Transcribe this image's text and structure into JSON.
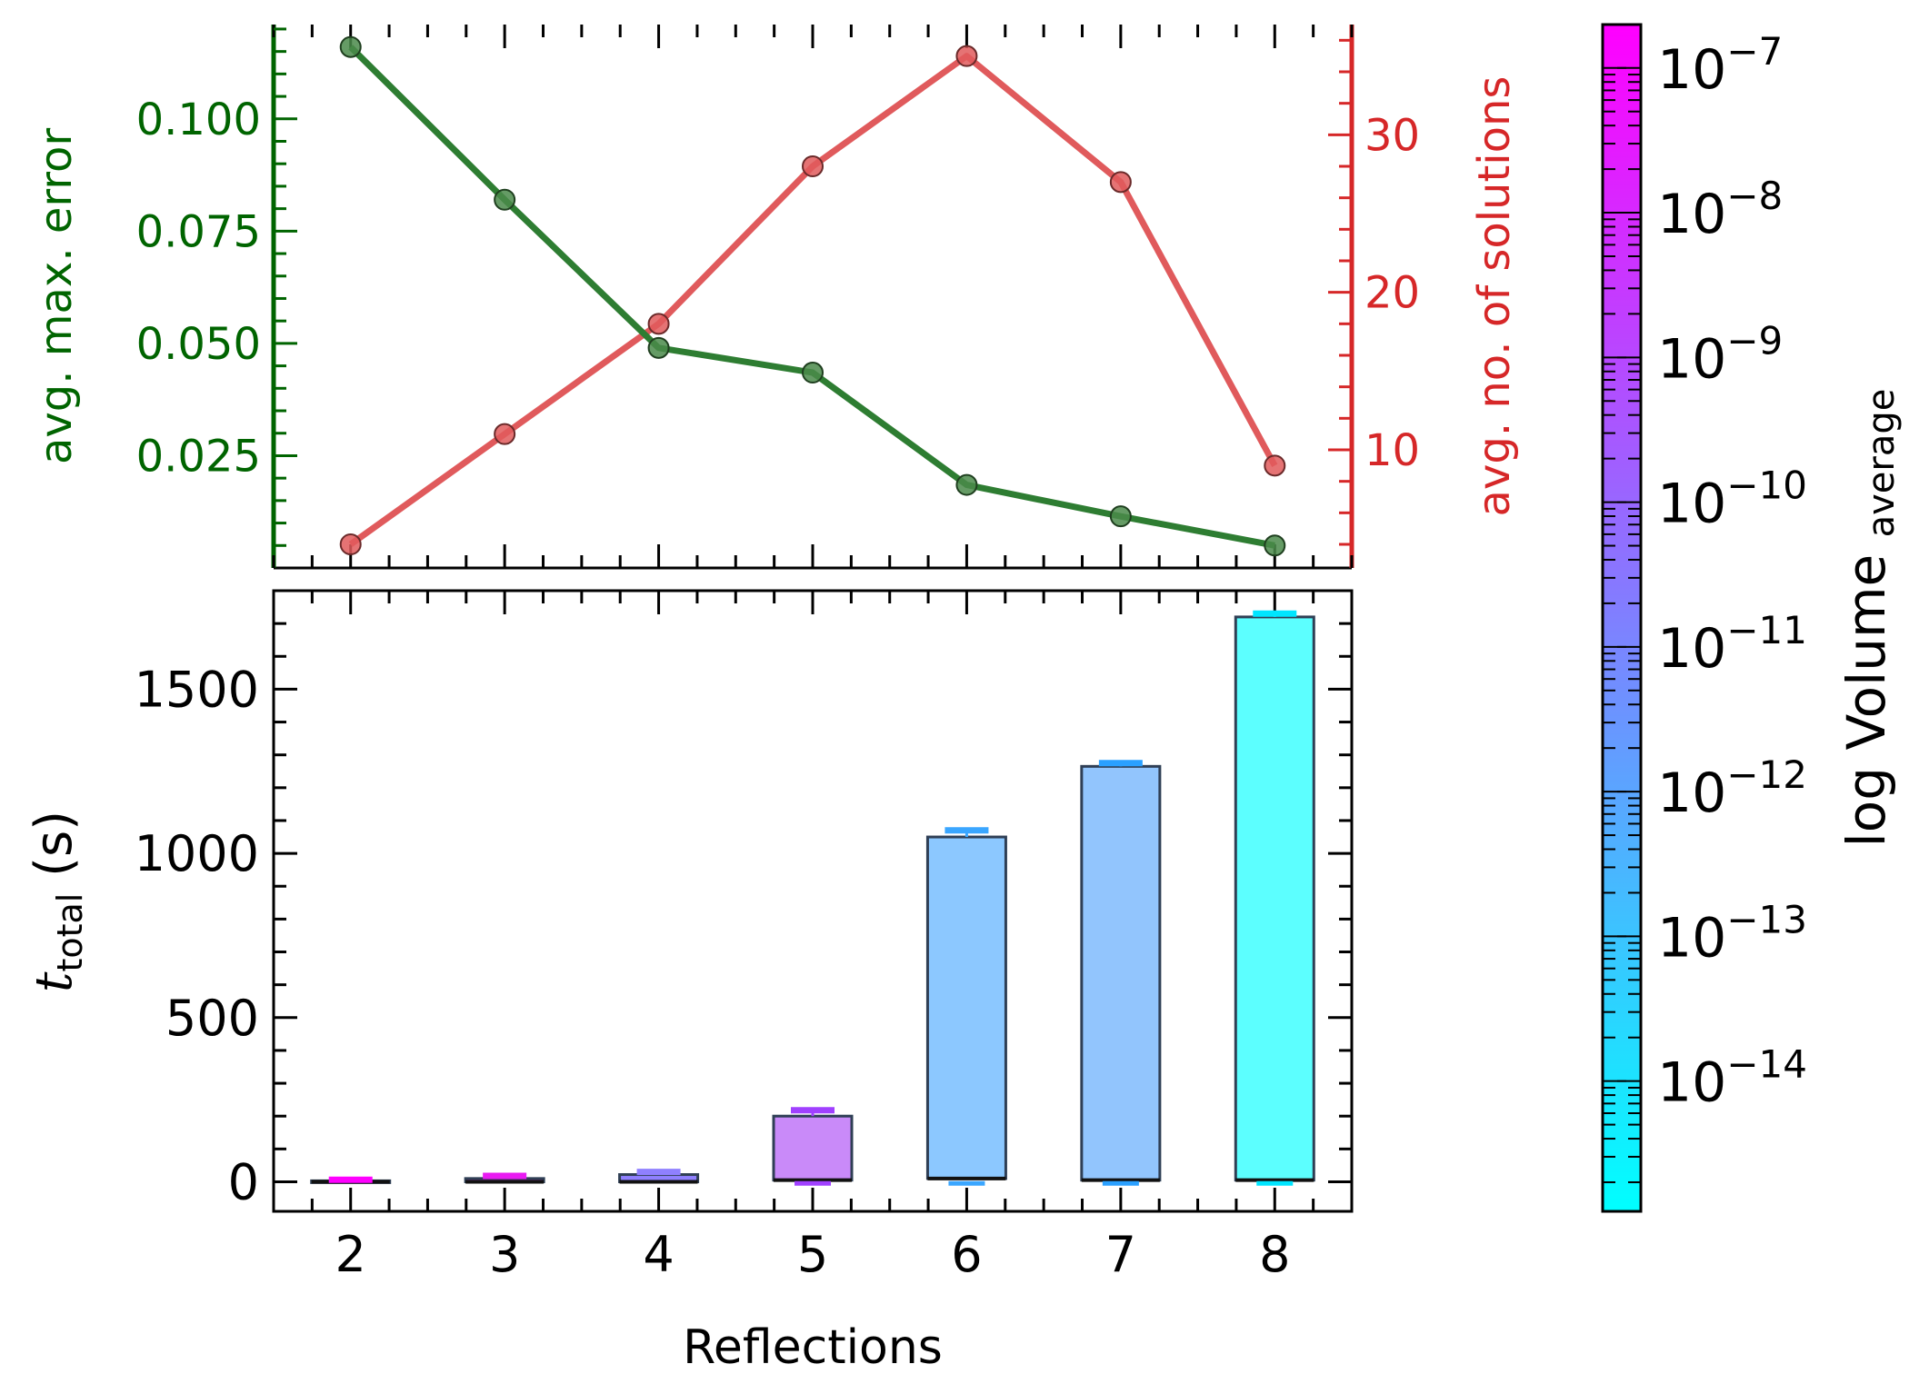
{
  "colors": {
    "error": "#006400",
    "error_line": "#2e7d32",
    "solutions": "#d62728",
    "solutions_line": "#e05a5c",
    "axis": "#000000",
    "bar_edge": "#2f3f55",
    "cmap_low": "#00ffff",
    "cmap_high": "#ff00ff"
  },
  "chart_data": [
    {
      "type": "line",
      "x": [
        2,
        3,
        4,
        5,
        6,
        7,
        8
      ],
      "xlim": [
        1.5,
        8.5
      ],
      "series": [
        {
          "name": "",
          "axis": "left",
          "values": [
            0.116,
            0.082,
            0.049,
            0.0435,
            0.0185,
            0.0115,
            0.005
          ],
          "ylabel": "avg. max. error",
          "ylim": [
            0.0,
            0.121
          ],
          "yticks": [
            0.025,
            0.05,
            0.075,
            0.1
          ],
          "ytick_labels": [
            "0.025",
            "0.050",
            "0.075",
            "0.100"
          ]
        },
        {
          "name": "",
          "axis": "right",
          "values": [
            4,
            11,
            18,
            28,
            35,
            27,
            9
          ],
          "ylabel": "avg. no. of solutions",
          "ylim": [
            2.5,
            37
          ],
          "yticks": [
            10,
            20,
            30
          ],
          "ytick_labels": [
            "10",
            "20",
            "30"
          ]
        }
      ],
      "grid": false
    },
    {
      "type": "bar",
      "categories": [
        "2",
        "3",
        "4",
        "5",
        "6",
        "7",
        "8"
      ],
      "x": [
        2,
        3,
        4,
        5,
        6,
        7,
        8
      ],
      "bar_top": [
        3,
        10,
        22,
        200,
        1050,
        1265,
        1720
      ],
      "bar_bottom": [
        0,
        0,
        0,
        5,
        10,
        5,
        5
      ],
      "err_top": [
        6,
        18,
        30,
        218,
        1070,
        1275,
        1730
      ],
      "err_bottom": [
        0,
        0,
        0,
        -5,
        -5,
        -5,
        -5
      ],
      "colors": [
        "#ff00ff",
        "#e91bf2",
        "#8f80ff",
        "#c98af9",
        "#8cc8ff",
        "#92c5fd",
        "#5cffff"
      ],
      "cap_colors": [
        "#ff00ff",
        "#e91bf2",
        "#8f80ff",
        "#a040ff",
        "#3aa6ff",
        "#2aa0ff",
        "#00e5ff"
      ],
      "xlabel": "Reflections",
      "ylabel": "t",
      "ylabel_sub": "total",
      "ylabel_unit": "(s)",
      "xlim": [
        1.5,
        8.5
      ],
      "ylim": [
        -90,
        1800
      ],
      "yticks": [
        0,
        500,
        1000,
        1500
      ],
      "ytick_labels": [
        "0",
        "500",
        "1000",
        "1500"
      ],
      "xtick_labels": [
        "2",
        "3",
        "4",
        "5",
        "6",
        "7",
        "8"
      ],
      "grid": false
    },
    {
      "type": "colorbar",
      "label": "log Volume",
      "label_sub": "average",
      "scale": "log",
      "range_exp": [
        -14.9,
        -6.7
      ],
      "tick_exps": [
        -14,
        -13,
        -12,
        -11,
        -10,
        -9,
        -8,
        -7
      ],
      "tick_labels": [
        "10",
        "10",
        "10",
        "10",
        "10",
        "10",
        "10",
        "10"
      ],
      "tick_exponents": [
        "−14",
        "−13",
        "−12",
        "−11",
        "−10",
        "−9",
        "−8",
        "−7"
      ]
    }
  ]
}
